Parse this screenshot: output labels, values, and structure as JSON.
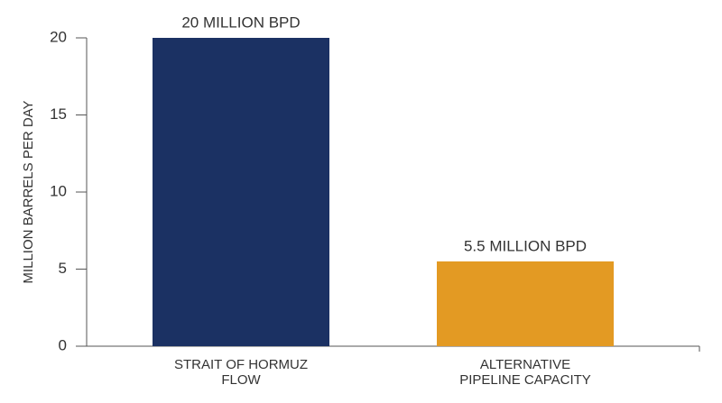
{
  "chart_data": {
    "type": "bar",
    "y_label": "MILLION BARRELS PER DAY",
    "categories": [
      "STRAIT OF HORMUZ\nFLOW",
      "ALTERNATIVE\nPIPELINE CAPACITY"
    ],
    "values": [
      20,
      5.5
    ],
    "value_labels": [
      "20 MILLION BPD",
      "5.5 MILLION BPD"
    ],
    "colors": [
      "#1b3163",
      "#e39a23"
    ],
    "ylim": [
      0,
      20
    ],
    "yticks": [
      0,
      5,
      10,
      15,
      20
    ],
    "grid": false
  }
}
